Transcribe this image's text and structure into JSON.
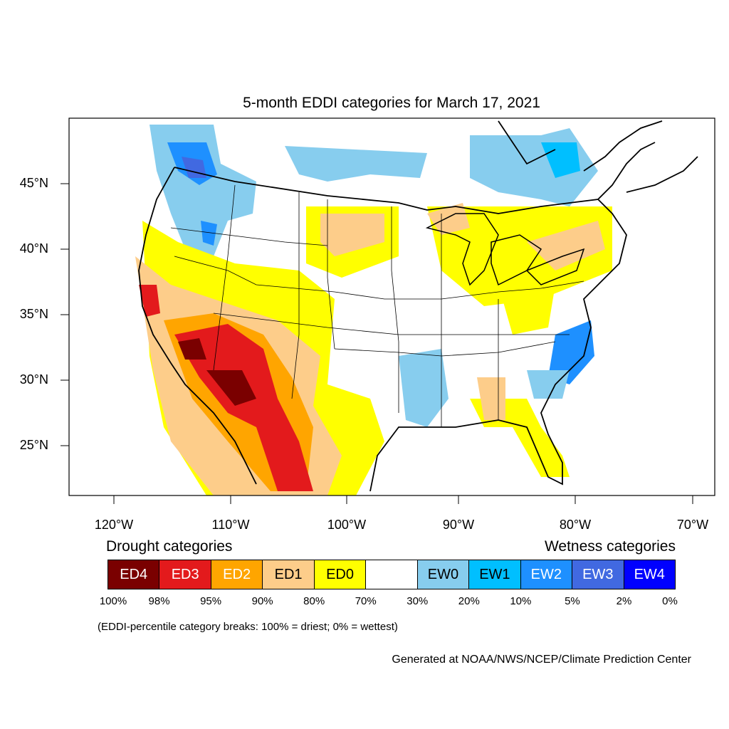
{
  "title": "5-month EDDI categories for March 17, 2021",
  "y_ticks": [
    "45°N",
    "40°N",
    "35°N",
    "30°N",
    "25°N"
  ],
  "x_ticks": [
    "120°W",
    "110°W",
    "100°W",
    "90°W",
    "80°W",
    "70°W"
  ],
  "drought_heading": "Drought categories",
  "wetness_heading": "Wetness categories",
  "legend": [
    {
      "label": "ED4",
      "color": "#7a0000",
      "text_color": "#ffffff"
    },
    {
      "label": "ED3",
      "color": "#e31a1c",
      "text_color": "#ffffff"
    },
    {
      "label": "ED2",
      "color": "#ffa500",
      "text_color": "#ffffff"
    },
    {
      "label": "ED1",
      "color": "#fdcd8a",
      "text_color": "#000000"
    },
    {
      "label": "ED0",
      "color": "#ffff00",
      "text_color": "#000000"
    },
    {
      "label": "",
      "color": "#ffffff",
      "text_color": "#000000"
    },
    {
      "label": "EW0",
      "color": "#87cdee",
      "text_color": "#000000"
    },
    {
      "label": "EW1",
      "color": "#00bfff",
      "text_color": "#000000"
    },
    {
      "label": "EW2",
      "color": "#1e90ff",
      "text_color": "#ffffff"
    },
    {
      "label": "EW3",
      "color": "#4169e1",
      "text_color": "#ffffff"
    },
    {
      "label": "EW4",
      "color": "#0000ff",
      "text_color": "#ffffff"
    }
  ],
  "percentiles": [
    "100%",
    "98%",
    "95%",
    "90%",
    "80%",
    "70%",
    "30%",
    "20%",
    "10%",
    "5%",
    "2%",
    "0%"
  ],
  "note": "(EDDI-percentile category breaks: 100% = driest; 0% = wettest)",
  "credit": "Generated at NOAA/NWS/NCEP/Climate Prediction Center"
}
